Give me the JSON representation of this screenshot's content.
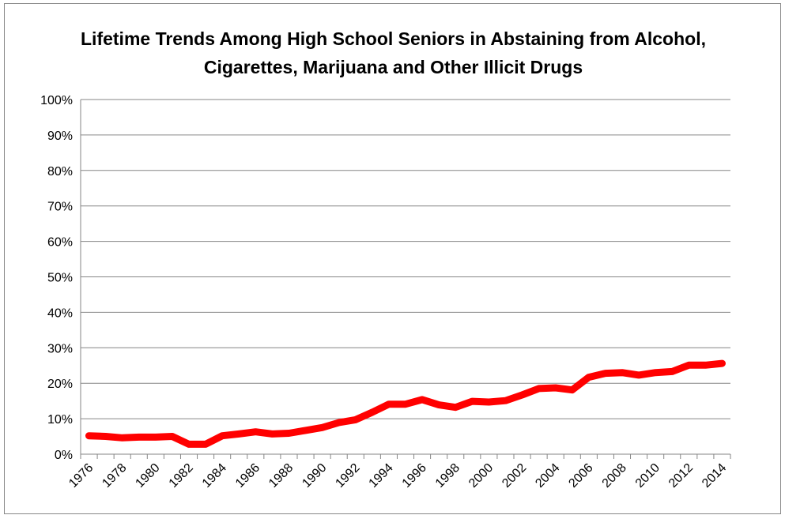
{
  "chart_data": {
    "type": "line",
    "title": "Lifetime Trends Among High School Seniors in Abstaining from Alcohol, Cigarettes, Marijuana and Other Illicit Drugs",
    "xlabel": "",
    "ylabel": "",
    "x": [
      1976,
      1977,
      1978,
      1979,
      1980,
      1981,
      1982,
      1983,
      1984,
      1985,
      1986,
      1987,
      1988,
      1989,
      1990,
      1991,
      1992,
      1993,
      1994,
      1995,
      1996,
      1997,
      1998,
      1999,
      2000,
      2001,
      2002,
      2003,
      2004,
      2005,
      2006,
      2007,
      2008,
      2009,
      2010,
      2011,
      2012,
      2013,
      2014
    ],
    "x_tick_labels": [
      "1976",
      "1978",
      "1980",
      "1982",
      "1984",
      "1986",
      "1988",
      "1990",
      "1992",
      "1994",
      "1996",
      "1998",
      "2000",
      "2002",
      "2004",
      "2006",
      "2008",
      "2010",
      "2012",
      "2014"
    ],
    "series": [
      {
        "values": [
          0.052,
          0.05,
          0.046,
          0.048,
          0.048,
          0.05,
          0.028,
          0.028,
          0.052,
          0.057,
          0.063,
          0.057,
          0.059,
          0.067,
          0.075,
          0.089,
          0.097,
          0.118,
          0.141,
          0.141,
          0.154,
          0.139,
          0.132,
          0.149,
          0.147,
          0.151,
          0.167,
          0.185,
          0.187,
          0.181,
          0.217,
          0.228,
          0.23,
          0.223,
          0.23,
          0.233,
          0.251,
          0.251,
          0.256
        ],
        "color": "#ff0000"
      }
    ],
    "ylim": [
      0,
      1
    ],
    "y_tick_labels": [
      "0%",
      "10%",
      "20%",
      "30%",
      "40%",
      "50%",
      "60%",
      "70%",
      "80%",
      "90%",
      "100%"
    ],
    "grid": true,
    "legend": "none"
  }
}
